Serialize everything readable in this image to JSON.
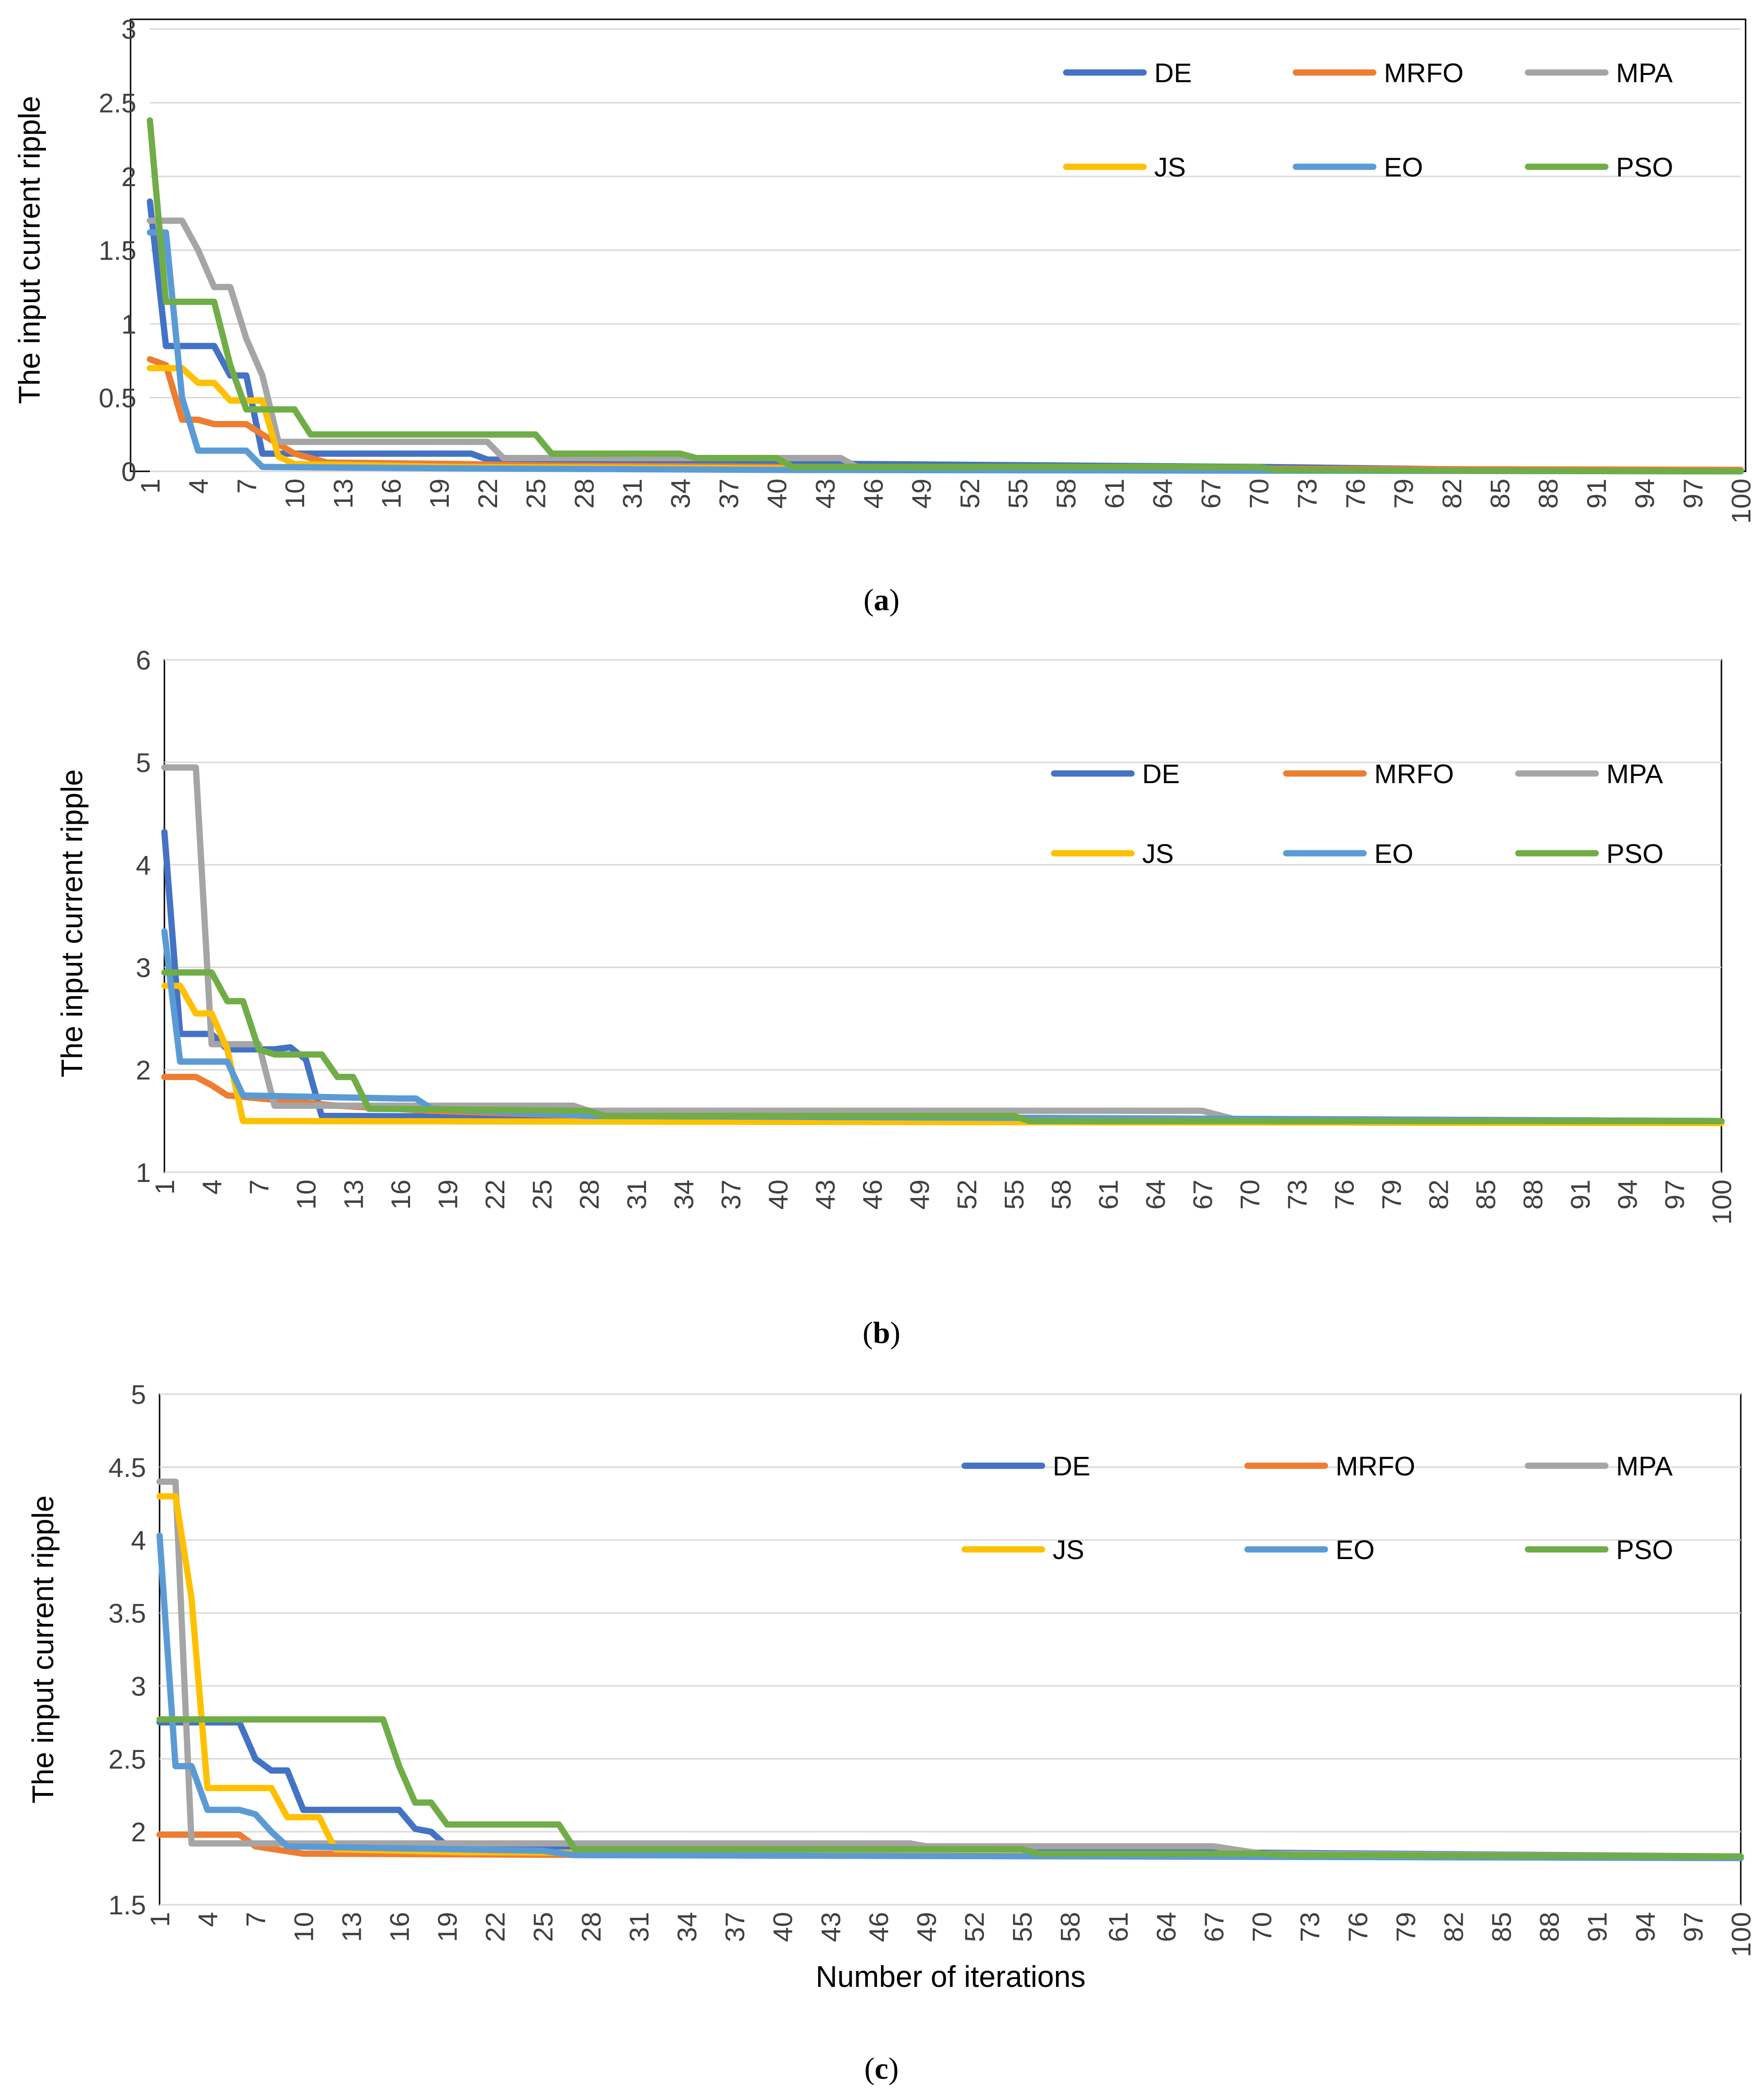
{
  "colors": {
    "DE": "#4472C4",
    "MRFO": "#ED7D31",
    "MPA": "#A5A5A5",
    "JS": "#FFC000",
    "EO": "#5B9BD5",
    "PSO": "#70AD47"
  },
  "chart_data": [
    {
      "type": "line",
      "caption_letter": "a",
      "ylabel": "The input current ripple",
      "xlabel": "",
      "ylim": [
        0,
        3
      ],
      "yticks": [
        0,
        0.5,
        1,
        1.5,
        2,
        2.5,
        3
      ],
      "ytick_labels": [
        "0",
        "0.5",
        "1",
        "1.5",
        "2",
        "2.5",
        "3"
      ],
      "xlim": [
        1,
        100
      ],
      "xtick_labels": [
        "1",
        "4",
        "7",
        "10",
        "13",
        "16",
        "19",
        "22",
        "25",
        "28",
        "31",
        "34",
        "37",
        "40",
        "43",
        "46",
        "49",
        "52",
        "55",
        "58",
        "61",
        "64",
        "67",
        "70",
        "73",
        "76",
        "79",
        "82",
        "85",
        "88",
        "91",
        "94",
        "97",
        "100"
      ],
      "grid": true,
      "legend_rows": [
        [
          "DE",
          "MRFO",
          "MPA"
        ],
        [
          "JS",
          "EO",
          "PSO"
        ]
      ],
      "series": [
        {
          "name": "DE",
          "points": [
            [
              1,
              1.83
            ],
            [
              2,
              0.85
            ],
            [
              5,
              0.85
            ],
            [
              6,
              0.65
            ],
            [
              7,
              0.65
            ],
            [
              8,
              0.12
            ],
            [
              10,
              0.12
            ],
            [
              11,
              0.12
            ],
            [
              21,
              0.12
            ],
            [
              22,
              0.08
            ],
            [
              45,
              0.05
            ],
            [
              70,
              0.03
            ],
            [
              85,
              0.01
            ],
            [
              100,
              0.0
            ]
          ]
        },
        {
          "name": "MRFO",
          "points": [
            [
              1,
              0.76
            ],
            [
              2,
              0.72
            ],
            [
              3,
              0.35
            ],
            [
              4,
              0.35
            ],
            [
              5,
              0.32
            ],
            [
              7,
              0.32
            ],
            [
              8,
              0.25
            ],
            [
              10,
              0.12
            ],
            [
              12,
              0.06
            ],
            [
              20,
              0.05
            ],
            [
              25,
              0.04
            ],
            [
              40,
              0.03
            ],
            [
              60,
              0.02
            ],
            [
              100,
              0.01
            ]
          ]
        },
        {
          "name": "MPA",
          "points": [
            [
              1,
              1.7
            ],
            [
              3,
              1.7
            ],
            [
              4,
              1.5
            ],
            [
              5,
              1.25
            ],
            [
              6,
              1.25
            ],
            [
              7,
              0.9
            ],
            [
              8,
              0.65
            ],
            [
              9,
              0.2
            ],
            [
              22,
              0.2
            ],
            [
              23,
              0.09
            ],
            [
              44,
              0.09
            ],
            [
              45,
              0.03
            ],
            [
              67,
              0.03
            ],
            [
              68,
              0.01
            ],
            [
              100,
              0.0
            ]
          ]
        },
        {
          "name": "JS",
          "points": [
            [
              1,
              0.7
            ],
            [
              2,
              0.7
            ],
            [
              3,
              0.7
            ],
            [
              4,
              0.6
            ],
            [
              5,
              0.6
            ],
            [
              6,
              0.48
            ],
            [
              8,
              0.48
            ],
            [
              9,
              0.1
            ],
            [
              10,
              0.05
            ],
            [
              20,
              0.03
            ],
            [
              40,
              0.02
            ],
            [
              60,
              0.01
            ],
            [
              100,
              0.0
            ]
          ]
        },
        {
          "name": "EO",
          "points": [
            [
              1,
              1.62
            ],
            [
              2,
              1.62
            ],
            [
              3,
              0.5
            ],
            [
              4,
              0.14
            ],
            [
              7,
              0.14
            ],
            [
              8,
              0.03
            ],
            [
              20,
              0.02
            ],
            [
              40,
              0.01
            ],
            [
              100,
              0.0
            ]
          ]
        },
        {
          "name": "PSO",
          "points": [
            [
              1,
              2.38
            ],
            [
              2,
              1.15
            ],
            [
              5,
              1.15
            ],
            [
              6,
              0.72
            ],
            [
              7,
              0.42
            ],
            [
              10,
              0.42
            ],
            [
              11,
              0.25
            ],
            [
              25,
              0.25
            ],
            [
              26,
              0.12
            ],
            [
              34,
              0.12
            ],
            [
              35,
              0.09
            ],
            [
              40,
              0.09
            ],
            [
              41,
              0.03
            ],
            [
              70,
              0.03
            ],
            [
              71,
              0.01
            ],
            [
              100,
              0.0
            ]
          ]
        }
      ]
    },
    {
      "type": "line",
      "caption_letter": "b",
      "ylabel": "The input current ripple",
      "xlabel": "",
      "ylim": [
        1,
        6
      ],
      "yticks": [
        1,
        2,
        3,
        4,
        5,
        6
      ],
      "ytick_labels": [
        "1",
        "2",
        "3",
        "4",
        "5",
        "6"
      ],
      "xlim": [
        1,
        100
      ],
      "xtick_labels": [
        "1",
        "4",
        "7",
        "10",
        "13",
        "16",
        "19",
        "22",
        "25",
        "28",
        "31",
        "34",
        "37",
        "40",
        "43",
        "46",
        "49",
        "52",
        "55",
        "58",
        "61",
        "64",
        "67",
        "70",
        "73",
        "76",
        "79",
        "82",
        "85",
        "88",
        "91",
        "94",
        "97",
        "100"
      ],
      "grid": true,
      "legend_rows": [
        [
          "DE",
          "MRFO",
          "MPA"
        ],
        [
          "JS",
          "EO",
          "PSO"
        ]
      ],
      "series": [
        {
          "name": "DE",
          "points": [
            [
              1,
              4.32
            ],
            [
              2,
              2.35
            ],
            [
              4,
              2.35
            ],
            [
              5,
              2.2
            ],
            [
              8,
              2.2
            ],
            [
              9,
              2.22
            ],
            [
              10,
              2.1
            ],
            [
              11,
              1.55
            ],
            [
              100,
              1.5
            ]
          ]
        },
        {
          "name": "MRFO",
          "points": [
            [
              1,
              1.93
            ],
            [
              3,
              1.93
            ],
            [
              4,
              1.85
            ],
            [
              5,
              1.75
            ],
            [
              12,
              1.65
            ],
            [
              18,
              1.6
            ],
            [
              28,
              1.55
            ],
            [
              100,
              1.5
            ]
          ]
        },
        {
          "name": "MPA",
          "points": [
            [
              1,
              4.95
            ],
            [
              3,
              4.95
            ],
            [
              4,
              2.25
            ],
            [
              7,
              2.25
            ],
            [
              8,
              1.65
            ],
            [
              27,
              1.65
            ],
            [
              28,
              1.6
            ],
            [
              67,
              1.6
            ],
            [
              69,
              1.52
            ],
            [
              100,
              1.5
            ]
          ]
        },
        {
          "name": "JS",
          "points": [
            [
              1,
              2.82
            ],
            [
              2,
              2.82
            ],
            [
              3,
              2.55
            ],
            [
              4,
              2.55
            ],
            [
              5,
              2.2
            ],
            [
              6,
              1.5
            ],
            [
              100,
              1.48
            ]
          ]
        },
        {
          "name": "EO",
          "points": [
            [
              1,
              3.35
            ],
            [
              2,
              2.08
            ],
            [
              5,
              2.08
            ],
            [
              6,
              1.75
            ],
            [
              16,
              1.72
            ],
            [
              17,
              1.72
            ],
            [
              18,
              1.62
            ],
            [
              28,
              1.55
            ],
            [
              100,
              1.5
            ]
          ]
        },
        {
          "name": "PSO",
          "points": [
            [
              1,
              2.95
            ],
            [
              4,
              2.95
            ],
            [
              5,
              2.67
            ],
            [
              6,
              2.67
            ],
            [
              7,
              2.2
            ],
            [
              8,
              2.15
            ],
            [
              11,
              2.15
            ],
            [
              12,
              1.93
            ],
            [
              13,
              1.93
            ],
            [
              14,
              1.62
            ],
            [
              28,
              1.6
            ],
            [
              29,
              1.55
            ],
            [
              55,
              1.55
            ],
            [
              56,
              1.5
            ],
            [
              100,
              1.5
            ]
          ]
        }
      ]
    },
    {
      "type": "line",
      "caption_letter": "c",
      "ylabel": "The input current ripple",
      "xlabel": "Number of iterations",
      "ylim": [
        1.5,
        5
      ],
      "yticks": [
        1.5,
        2,
        2.5,
        3,
        3.5,
        4,
        4.5,
        5
      ],
      "ytick_labels": [
        "1.5",
        "2",
        "2.5",
        "3",
        "3.5",
        "4",
        "4.5",
        "5"
      ],
      "xlim": [
        1,
        100
      ],
      "xtick_labels": [
        "1",
        "4",
        "7",
        "10",
        "13",
        "16",
        "19",
        "22",
        "25",
        "28",
        "31",
        "34",
        "37",
        "40",
        "43",
        "46",
        "49",
        "52",
        "55",
        "58",
        "61",
        "64",
        "67",
        "70",
        "73",
        "76",
        "79",
        "82",
        "85",
        "88",
        "91",
        "94",
        "97",
        "100"
      ],
      "grid": true,
      "legend_rows": [
        [
          "DE",
          "MRFO",
          "MPA"
        ],
        [
          "JS",
          "EO",
          "PSO"
        ]
      ],
      "series": [
        {
          "name": "DE",
          "points": [
            [
              1,
              2.75
            ],
            [
              5,
              2.75
            ],
            [
              6,
              2.75
            ],
            [
              7,
              2.5
            ],
            [
              8,
              2.42
            ],
            [
              9,
              2.42
            ],
            [
              10,
              2.15
            ],
            [
              16,
              2.15
            ],
            [
              17,
              2.02
            ],
            [
              18,
              2.0
            ],
            [
              19,
              1.9
            ],
            [
              100,
              1.83
            ]
          ]
        },
        {
          "name": "MRFO",
          "points": [
            [
              1,
              1.98
            ],
            [
              6,
              1.98
            ],
            [
              7,
              1.9
            ],
            [
              10,
              1.85
            ],
            [
              30,
              1.84
            ],
            [
              100,
              1.83
            ]
          ]
        },
        {
          "name": "MPA",
          "points": [
            [
              1,
              4.4
            ],
            [
              2,
              4.4
            ],
            [
              3,
              1.92
            ],
            [
              48,
              1.92
            ],
            [
              49,
              1.9
            ],
            [
              67,
              1.9
            ],
            [
              70,
              1.85
            ],
            [
              100,
              1.83
            ]
          ]
        },
        {
          "name": "JS",
          "points": [
            [
              1,
              4.3
            ],
            [
              2,
              4.3
            ],
            [
              3,
              3.6
            ],
            [
              4,
              2.3
            ],
            [
              8,
              2.3
            ],
            [
              9,
              2.1
            ],
            [
              11,
              2.1
            ],
            [
              12,
              1.88
            ],
            [
              20,
              1.86
            ],
            [
              40,
              1.85
            ],
            [
              100,
              1.83
            ]
          ]
        },
        {
          "name": "EO",
          "points": [
            [
              1,
              4.03
            ],
            [
              2,
              2.45
            ],
            [
              3,
              2.45
            ],
            [
              4,
              2.15
            ],
            [
              6,
              2.15
            ],
            [
              7,
              2.12
            ],
            [
              8,
              2.0
            ],
            [
              9,
              1.9
            ],
            [
              25,
              1.87
            ],
            [
              27,
              1.84
            ],
            [
              100,
              1.82
            ]
          ]
        },
        {
          "name": "PSO",
          "points": [
            [
              1,
              2.77
            ],
            [
              15,
              2.77
            ],
            [
              16,
              2.45
            ],
            [
              17,
              2.2
            ],
            [
              18,
              2.2
            ],
            [
              19,
              2.05
            ],
            [
              26,
              2.05
            ],
            [
              27,
              1.88
            ],
            [
              55,
              1.88
            ],
            [
              56,
              1.85
            ],
            [
              70,
              1.85
            ],
            [
              72,
              1.84
            ],
            [
              100,
              1.83
            ]
          ]
        }
      ]
    }
  ]
}
